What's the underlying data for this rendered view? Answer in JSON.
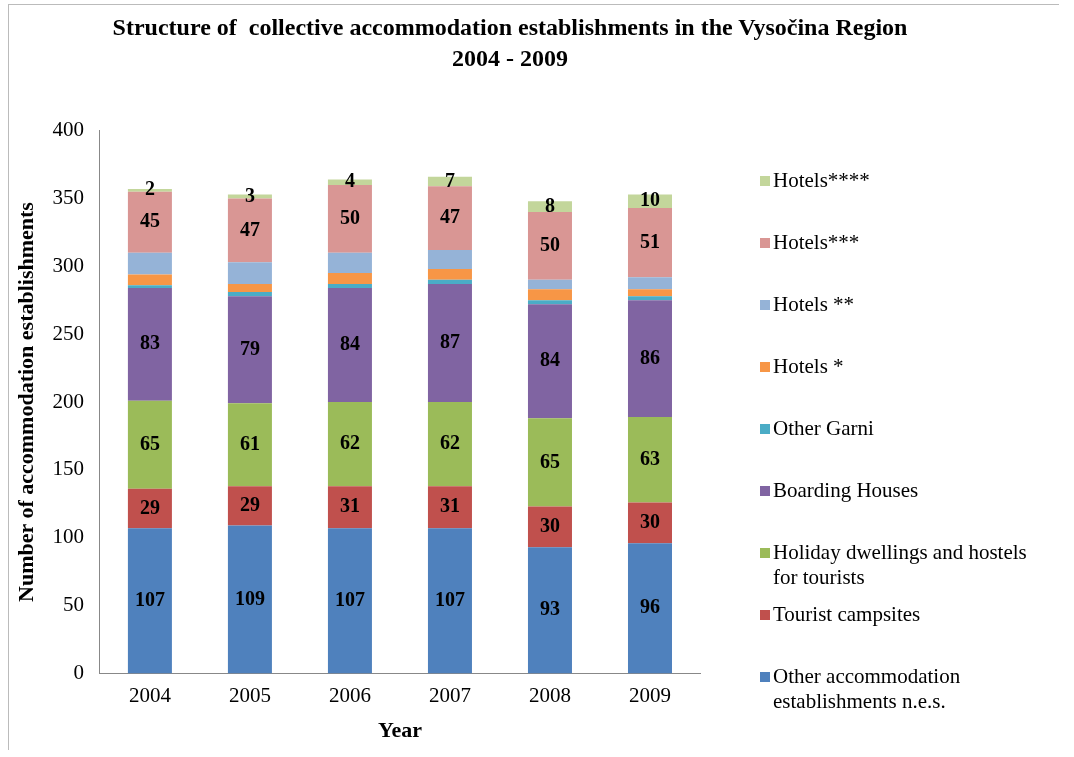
{
  "chart_data": {
    "type": "bar",
    "title": "Structure of  collective accommodation establishments in the Vysočina Region 2004 - 2009",
    "xlabel": "Year",
    "ylabel": "Number of accommodation establishments",
    "categories": [
      "2004",
      "2005",
      "2006",
      "2007",
      "2008",
      "2009"
    ],
    "stacked": true,
    "ylim": [
      0,
      400
    ],
    "yticks": [
      0,
      50,
      100,
      150,
      200,
      250,
      300,
      350,
      400
    ],
    "legend": "right",
    "series": [
      {
        "name": "Other accommodation establishments n.e.s.",
        "color": "#4f81bd",
        "values": [
          107,
          109,
          107,
          107,
          93,
          96
        ],
        "value_labels": [
          "107",
          "109",
          "107",
          "107",
          "93",
          "96"
        ]
      },
      {
        "name": "Tourist campsites",
        "color": "#c0504d",
        "values": [
          29,
          29,
          31,
          31,
          30,
          30
        ],
        "value_labels": [
          "29",
          "29",
          "31",
          "31",
          "30",
          "30"
        ]
      },
      {
        "name": "Holiday dwellings and hostels for tourists",
        "color": "#9bbb59",
        "values": [
          65,
          61,
          62,
          62,
          65,
          63
        ],
        "value_labels": [
          "65",
          "61",
          "62",
          "62",
          "65",
          "63"
        ]
      },
      {
        "name": "Boarding Houses",
        "color": "#8064a2",
        "values": [
          83,
          79,
          84,
          87,
          84,
          86
        ],
        "value_labels": [
          "83",
          "79",
          "84",
          "87",
          "84",
          "86"
        ]
      },
      {
        "name": "Other Garni",
        "color": "#4bacc6",
        "values": [
          2,
          3,
          3,
          3,
          3,
          3
        ]
      },
      {
        "name": "Hotels *",
        "color": "#f79646",
        "values": [
          8,
          6,
          8,
          8,
          8,
          5
        ]
      },
      {
        "name": "Hotels **",
        "color": "#95b3d7",
        "values": [
          16,
          16,
          15,
          14,
          7,
          9
        ]
      },
      {
        "name": "Hotels***",
        "color": "#d99694",
        "values": [
          45,
          47,
          50,
          47,
          50,
          51
        ],
        "value_labels": [
          "45",
          "47",
          "50",
          "47",
          "50",
          "51"
        ]
      },
      {
        "name": "Hotels****",
        "color": "#c3d69b",
        "values": [
          2,
          3,
          4,
          7,
          8,
          10
        ],
        "value_labels": [
          "2",
          "3",
          "4",
          "7",
          "8",
          "10"
        ]
      }
    ]
  }
}
